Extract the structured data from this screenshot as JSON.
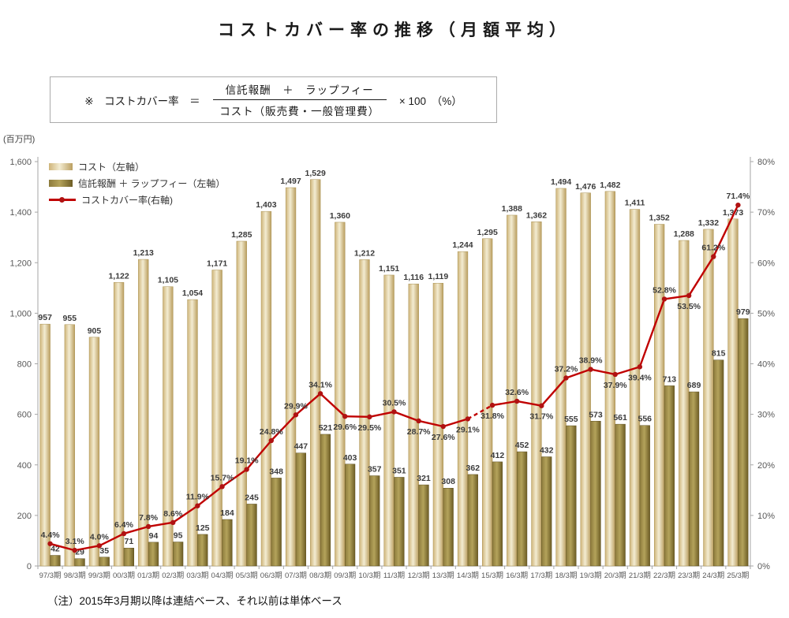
{
  "title": "コストカバー率の推移（月額平均）",
  "formula": {
    "prefix": "※　コストカバー率　＝",
    "numerator": "信託報酬　＋　ラップフィー",
    "denominator": "コスト（販売費・一般管理費）",
    "suffix": "× 100　（%）"
  },
  "legend": [
    {
      "label": "コスト（左軸）",
      "swatch": "bar-light"
    },
    {
      "label": "信託報酬 ＋ ラップフィー（左軸）",
      "swatch": "bar-dark"
    },
    {
      "label": "コストカバー率(右軸)",
      "swatch": "line"
    }
  ],
  "note": "（注）2015年3月期以降は連結ベース、それ以前は単体ベース",
  "chart_data": {
    "type": "bar+line",
    "title": "コストカバー率の推移（月額平均）",
    "categories": [
      "97/3期",
      "98/3期",
      "99/3期",
      "00/3期",
      "01/3期",
      "02/3期",
      "03/3期",
      "04/3期",
      "05/3期",
      "06/3期",
      "07/3期",
      "08/3期",
      "09/3期",
      "10/3期",
      "11/3期",
      "12/3期",
      "13/3期",
      "14/3期",
      "15/3期",
      "16/3期",
      "17/3期",
      "18/3期",
      "19/3期",
      "20/3期",
      "21/3期",
      "22/3期",
      "23/3期",
      "24/3期",
      "25/3期"
    ],
    "series": [
      {
        "name": "コスト（左軸）",
        "type": "bar",
        "axis": "left",
        "values": [
          957,
          955,
          905,
          1122,
          1213,
          1105,
          1054,
          1171,
          1285,
          1403,
          1497,
          1529,
          1360,
          1212,
          1151,
          1116,
          1119,
          1244,
          1295,
          1388,
          1362,
          1494,
          1476,
          1482,
          1411,
          1352,
          1288,
          1332,
          1373
        ]
      },
      {
        "name": "信託報酬 ＋ ラップフィー（左軸）",
        "type": "bar",
        "axis": "left",
        "values": [
          42,
          29,
          35,
          71,
          94,
          95,
          125,
          184,
          245,
          348,
          447,
          521,
          403,
          357,
          351,
          321,
          308,
          362,
          412,
          452,
          432,
          555,
          573,
          561,
          556,
          713,
          689,
          815,
          979
        ]
      },
      {
        "name": "コストカバー率(右軸)",
        "type": "line",
        "axis": "right",
        "values": [
          4.4,
          3.1,
          4.0,
          6.4,
          7.8,
          8.6,
          11.9,
          15.7,
          19.1,
          24.8,
          29.9,
          34.1,
          29.6,
          29.5,
          30.5,
          28.7,
          27.6,
          29.1,
          31.8,
          32.6,
          31.7,
          37.2,
          38.9,
          37.9,
          39.4,
          52.8,
          53.5,
          61.2,
          71.4
        ]
      }
    ],
    "left_axis": {
      "min": 0,
      "max": 1600,
      "step": 200,
      "unit_label": "(百万円)"
    },
    "right_axis": {
      "min": 0,
      "max": 80,
      "step": 10,
      "suffix": "%"
    },
    "pct_label_side": [
      "above",
      "above",
      "above",
      "above",
      "above",
      "above",
      "above",
      "above",
      "above",
      "above",
      "above",
      "above",
      "below",
      "below",
      "above",
      "below",
      "below",
      "below",
      "below",
      "above",
      "below",
      "above",
      "above",
      "below",
      "below",
      "above",
      "below",
      "above",
      "above"
    ],
    "dashed_segment_between": [
      "14/3期",
      "15/3期"
    ],
    "grid": false,
    "legend_position": "top-left-inside",
    "colors": {
      "bar_light_stops": [
        "#cfb57a",
        "#f3ecd2",
        "#bb9f60"
      ],
      "bar_light_border": "#a89050",
      "bar_dark_stops": [
        "#8d7b3c",
        "#b4a35b",
        "#6d5d25"
      ],
      "bar_dark_border": "#5f5120",
      "line": "#c00000",
      "marker": "#b01212",
      "axis": "#a6a6a6",
      "tick_text": "#595959",
      "data_label": "#3b3b3b"
    }
  }
}
